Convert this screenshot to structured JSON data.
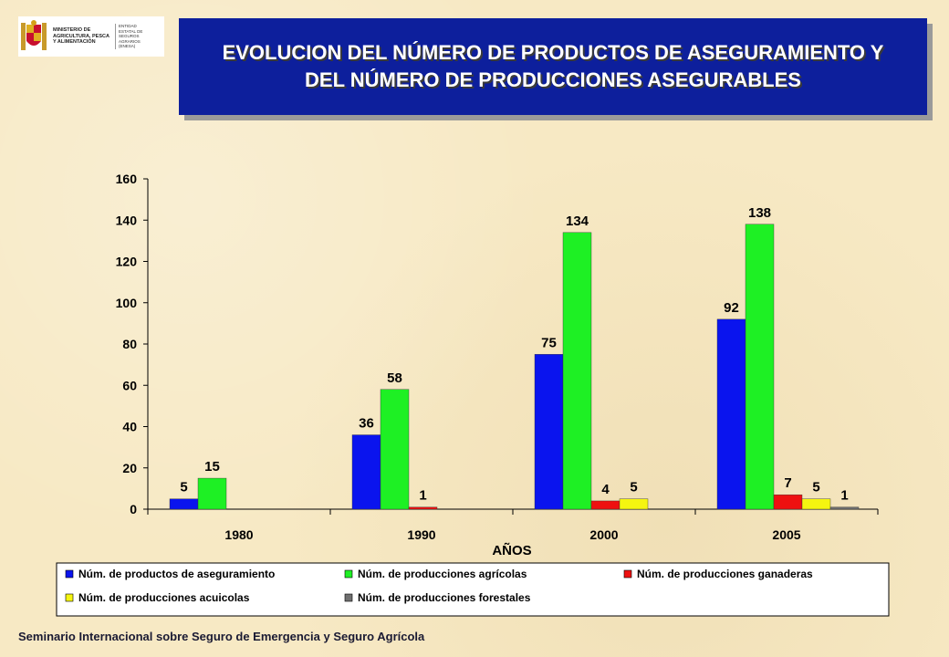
{
  "logo": {
    "ministry": "MINISTERIO DE AGRICULTURA, PESCA Y ALIMENTACIÓN",
    "entity": "ENTIDAD ESTATAL DE SEGUROS AGRARIOS (ENESA)"
  },
  "title": "EVOLUCION DEL NÚMERO DE PRODUCTOS DE ASEGURAMIENTO Y DEL NÚMERO DE PRODUCCIONES ASEGURABLES",
  "footer": "Seminario Internacional sobre Seguro de Emergencia y Seguro Agrícola",
  "chart_data": {
    "type": "bar",
    "title": "EVOLUCION DEL NÚMERO DE PRODUCTOS DE ASEGURAMIENTO Y DEL NÚMERO DE PRODUCCIONES ASEGURABLES",
    "xlabel": "AÑOS",
    "ylabel": "",
    "ylim": [
      0,
      160
    ],
    "yticks": [
      0,
      20,
      40,
      60,
      80,
      100,
      120,
      140,
      160
    ],
    "categories": [
      "1980",
      "1990",
      "2000",
      "2005"
    ],
    "series": [
      {
        "name": "Núm. de productos de aseguramiento",
        "color": "#0a14ee",
        "values": [
          5,
          36,
          75,
          92
        ]
      },
      {
        "name": "Núm. de producciones agrícolas",
        "color": "#1ef024",
        "values": [
          15,
          58,
          134,
          138
        ]
      },
      {
        "name": "Núm. de producciones ganaderas",
        "color": "#ee1010",
        "values": [
          null,
          1,
          4,
          7
        ]
      },
      {
        "name": "Núm. de producciones acuicolas",
        "color": "#f5f510",
        "values": [
          null,
          null,
          5,
          5
        ]
      },
      {
        "name": "Núm. de producciones forestales",
        "color": "#707070",
        "values": [
          null,
          null,
          null,
          1
        ]
      }
    ],
    "legend_position": "bottom"
  }
}
